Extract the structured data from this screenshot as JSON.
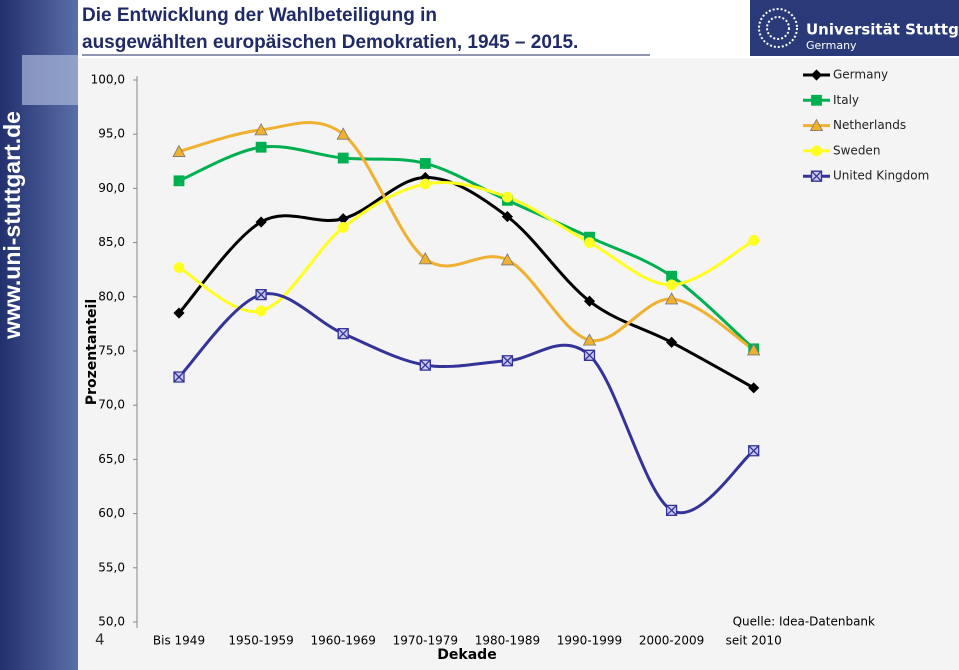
{
  "header": {
    "title": [
      "Die Entwicklung der Wahlbeteiligung in",
      "ausgewählten europäischen Demokratien, 1945 – 2015."
    ],
    "logo_name": "Universität Stuttgart",
    "logo_country": "Germany"
  },
  "sidebar_url": "www.uni-stuttgart.de",
  "page_number": "4",
  "chart_data": {
    "type": "line",
    "smooth": true,
    "ylabel": "Prozentanteil",
    "xlabel": "Dekade",
    "source": "Quelle: Idea-Datenbank",
    "categories": [
      "Bis 1949",
      "1950-1959",
      "1960-1969",
      "1970-1979",
      "1980-1989",
      "1990-1999",
      "2000-2009",
      "seit 2010"
    ],
    "ylim": [
      50,
      100
    ],
    "yticks": [
      {
        "value": 100,
        "label": "100,0"
      },
      {
        "value": 95,
        "label": "95,0"
      },
      {
        "value": 90,
        "label": "90,0"
      },
      {
        "value": 85,
        "label": "85,0"
      },
      {
        "value": 80,
        "label": "80,0"
      },
      {
        "value": 75,
        "label": "75,0"
      },
      {
        "value": 70,
        "label": "70,0"
      },
      {
        "value": 65,
        "label": "65,0"
      },
      {
        "value": 60,
        "label": "60,0"
      },
      {
        "value": 55,
        "label": "55,0"
      },
      {
        "value": 50,
        "label": "50,0"
      }
    ],
    "grid": false,
    "legend": "top-right",
    "series": [
      {
        "name": "Germany",
        "color": "#000000",
        "marker": "diamond",
        "values": [
          78.5,
          86.9,
          87.2,
          91.0,
          87.4,
          79.6,
          75.8,
          71.6
        ]
      },
      {
        "name": "Italy",
        "color": "#00b050",
        "marker": "square",
        "values": [
          90.7,
          93.8,
          92.8,
          92.3,
          88.9,
          85.5,
          81.9,
          75.2
        ]
      },
      {
        "name": "Netherlands",
        "color": "#f0b030",
        "marker": "triangle",
        "values": [
          93.4,
          95.4,
          95.0,
          83.5,
          83.4,
          76.0,
          79.8,
          75.1
        ]
      },
      {
        "name": "Sweden",
        "color": "#ffff22",
        "marker": "circle",
        "values": [
          82.7,
          78.7,
          86.4,
          90.4,
          89.2,
          85.0,
          81.1,
          85.2
        ]
      },
      {
        "name": "United Kingdom",
        "color": "#333399",
        "marker": "xsquare",
        "values": [
          72.6,
          80.2,
          76.6,
          73.7,
          74.1,
          74.6,
          60.3,
          65.8
        ]
      }
    ]
  }
}
